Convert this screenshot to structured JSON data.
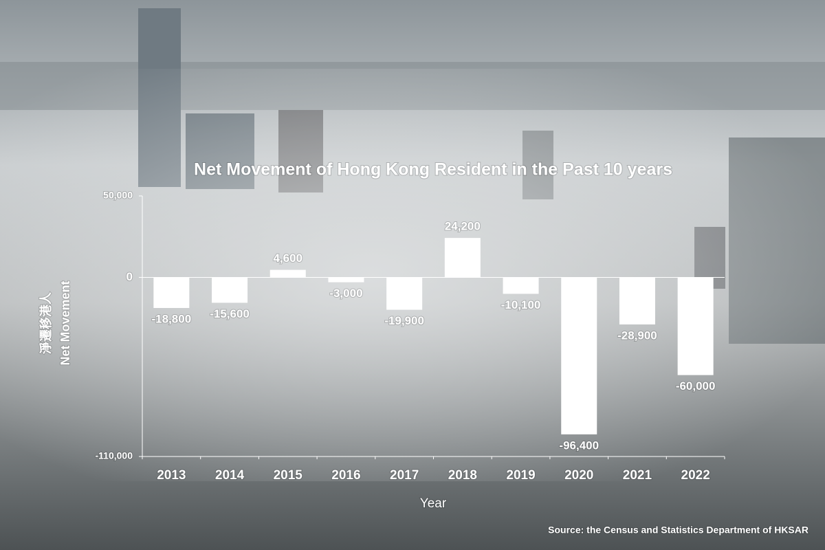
{
  "chart_data": {
    "type": "bar",
    "title": "Net Movement of Hong Kong Resident in the Past 10 years",
    "categories": [
      "2013",
      "2014",
      "2015",
      "2016",
      "2017",
      "2018",
      "2019",
      "2020",
      "2021",
      "2022"
    ],
    "values": [
      -18800,
      -15600,
      4600,
      -3000,
      -19900,
      24200,
      -10100,
      -96400,
      -28900,
      -60000
    ],
    "value_labels": [
      "-18,800",
      "-15,600",
      "4,600",
      "-3,000",
      "-19,900",
      "24,200",
      "-10,100",
      "-96,400",
      "-28,900",
      "-60,000"
    ],
    "color": "#ffffff",
    "ylim": [
      -110000,
      50000
    ],
    "yticks": [
      {
        "value": 50000,
        "label": "50,000"
      },
      0,
      {
        "value": -110000,
        "label": "-110,000"
      }
    ],
    "ylabel": [
      "淨遷移港人",
      "Net Movement"
    ],
    "xlabel": "Year",
    "source": "Source: the Census and Statistics Department of HKSAR"
  }
}
